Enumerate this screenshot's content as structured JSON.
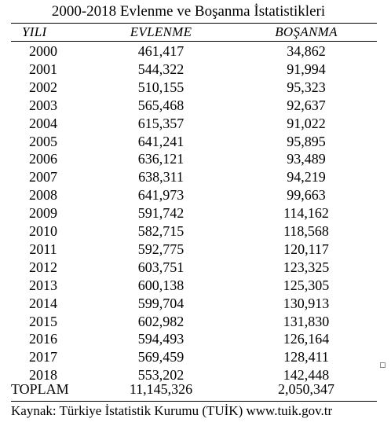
{
  "title": "2000-2018 Evlenme ve Boşanma İstatistikleri",
  "headers": {
    "year": "YILI",
    "marriage": "EVLENME",
    "divorce": "BOŞANMA"
  },
  "rows": [
    {
      "year": "2000",
      "marriage": "461,417",
      "divorce": "34,862"
    },
    {
      "year": "2001",
      "marriage": "544,322",
      "divorce": "91,994"
    },
    {
      "year": "2002",
      "marriage": "510,155",
      "divorce": "95,323"
    },
    {
      "year": "2003",
      "marriage": "565,468",
      "divorce": "92,637"
    },
    {
      "year": "2004",
      "marriage": "615,357",
      "divorce": "91,022"
    },
    {
      "year": "2005",
      "marriage": "641,241",
      "divorce": "95,895"
    },
    {
      "year": "2006",
      "marriage": "636,121",
      "divorce": "93,489"
    },
    {
      "year": "2007",
      "marriage": "638,311",
      "divorce": "94,219"
    },
    {
      "year": "2008",
      "marriage": "641,973",
      "divorce": "99,663"
    },
    {
      "year": "2009",
      "marriage": "591,742",
      "divorce": "114,162"
    },
    {
      "year": "2010",
      "marriage": "582,715",
      "divorce": "118,568"
    },
    {
      "year": "2011",
      "marriage": "592,775",
      "divorce": "120,117"
    },
    {
      "year": "2012",
      "marriage": "603,751",
      "divorce": "123,325"
    },
    {
      "year": "2013",
      "marriage": "600,138",
      "divorce": "125,305"
    },
    {
      "year": "2014",
      "marriage": "599,704",
      "divorce": "130,913"
    },
    {
      "year": "2015",
      "marriage": "602,982",
      "divorce": "131,830"
    },
    {
      "year": "2016",
      "marriage": "594,493",
      "divorce": "126,164"
    },
    {
      "year": "2017",
      "marriage": "569,459",
      "divorce": "128,411"
    },
    {
      "year": "2018",
      "marriage": "553,202",
      "divorce": "142,448"
    }
  ],
  "total": {
    "label": "TOPLAM",
    "marriage": "11,145,326",
    "divorce": "2,050,347"
  },
  "source": "Kaynak: Türkiye İstatistik Kurumu (TUİK) www.tuik.gov.tr"
}
